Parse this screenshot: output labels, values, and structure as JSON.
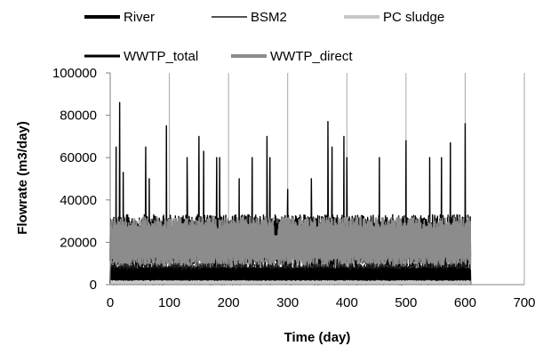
{
  "chart_data": {
    "type": "line",
    "title": "",
    "xlabel": "Time (day)",
    "ylabel": "Flowrate (m3/day)",
    "xlim": [
      0,
      700
    ],
    "ylim": [
      0,
      100000
    ],
    "x_ticks": [
      0,
      100,
      200,
      300,
      400,
      500,
      600,
      700
    ],
    "y_ticks": [
      0,
      20000,
      40000,
      60000,
      80000,
      100000
    ],
    "x_tick_labels": [
      "0",
      "100",
      "200",
      "300",
      "400",
      "500",
      "600",
      "700"
    ],
    "y_tick_labels": [
      "0",
      "20000",
      "40000",
      "60000",
      "80000",
      "100000"
    ],
    "grid": "vertical",
    "legend_position": "top",
    "series": [
      {
        "name": "River",
        "color": "#000000",
        "style": "thick",
        "typical_range": [
          0,
          8000
        ],
        "x_range": [
          0,
          609
        ]
      },
      {
        "name": "BSM2",
        "color": "#1a1a1a",
        "style": "thin",
        "typical_range": [
          0,
          10000
        ],
        "x_range": [
          0,
          609
        ]
      },
      {
        "name": "PC sludge",
        "color": "#c8c8c8",
        "style": "thin",
        "typical_range": [
          0,
          2000
        ],
        "x_range": [
          0,
          609
        ]
      },
      {
        "name": "WWTP_total",
        "color": "#000000",
        "style": "thick",
        "typical_range": [
          7000,
          33000
        ],
        "x_range": [
          0,
          609
        ],
        "peaks": [
          {
            "x": 10,
            "y": 65000
          },
          {
            "x": 16,
            "y": 86000
          },
          {
            "x": 22,
            "y": 53000
          },
          {
            "x": 60,
            "y": 65000
          },
          {
            "x": 66,
            "y": 50000
          },
          {
            "x": 95,
            "y": 75000
          },
          {
            "x": 130,
            "y": 60000
          },
          {
            "x": 150,
            "y": 70000
          },
          {
            "x": 158,
            "y": 63000
          },
          {
            "x": 180,
            "y": 60000
          },
          {
            "x": 185,
            "y": 60000
          },
          {
            "x": 218,
            "y": 50000
          },
          {
            "x": 240,
            "y": 60000
          },
          {
            "x": 265,
            "y": 70000
          },
          {
            "x": 270,
            "y": 60000
          },
          {
            "x": 300,
            "y": 45000
          },
          {
            "x": 340,
            "y": 50000
          },
          {
            "x": 368,
            "y": 77000
          },
          {
            "x": 375,
            "y": 65000
          },
          {
            "x": 395,
            "y": 70000
          },
          {
            "x": 400,
            "y": 60000
          },
          {
            "x": 455,
            "y": 60000
          },
          {
            "x": 500,
            "y": 68000
          },
          {
            "x": 540,
            "y": 60000
          },
          {
            "x": 560,
            "y": 60000
          },
          {
            "x": 575,
            "y": 67000
          },
          {
            "x": 600,
            "y": 76000
          }
        ]
      },
      {
        "name": "WWTP_direct",
        "color": "#8c8c8c",
        "style": "thick",
        "typical_range": [
          8000,
          32000
        ],
        "x_range": [
          0,
          609
        ],
        "dip": {
          "x": 280,
          "y": 23000
        }
      }
    ]
  }
}
